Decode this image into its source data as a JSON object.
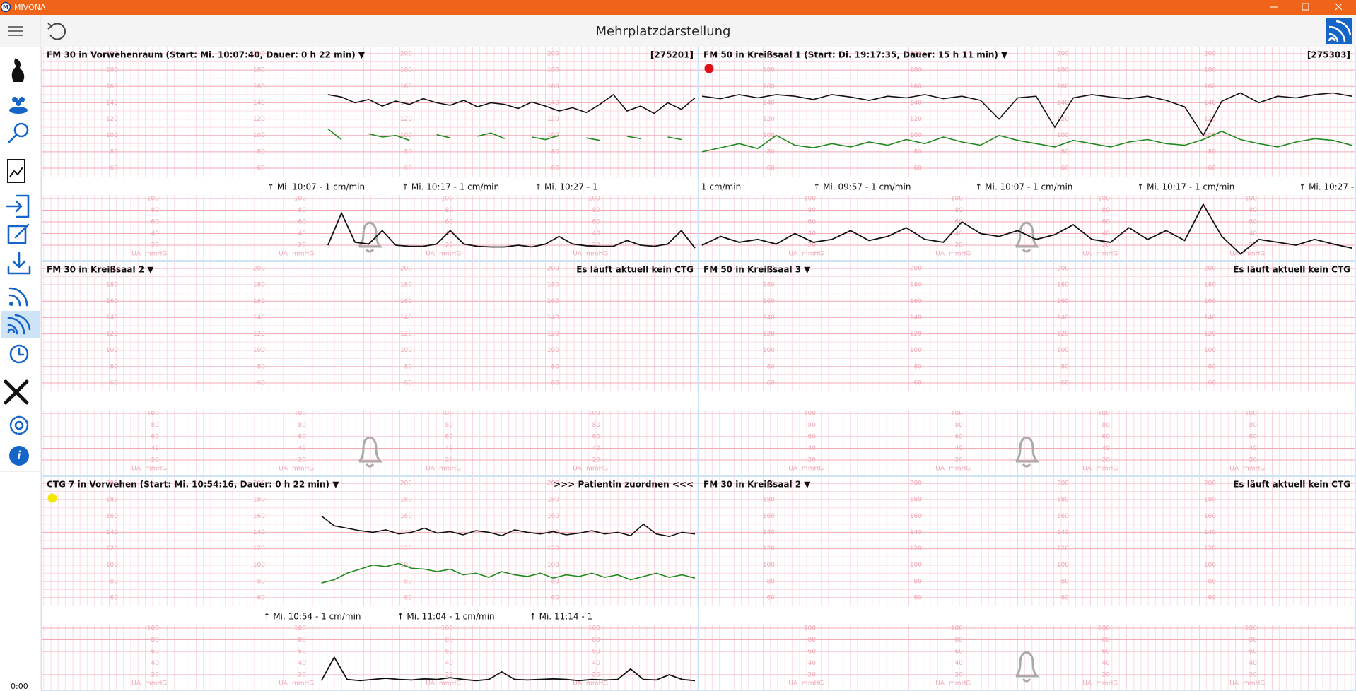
{
  "window": {
    "title": "MIVONA"
  },
  "toolbar": {
    "title": "Mehrplatzdarstellung"
  },
  "sidebar": {
    "clock": "0:00"
  },
  "scales": {
    "fhr": [
      200,
      180,
      160,
      140,
      120,
      100,
      80,
      60
    ],
    "ua": [
      100,
      80,
      60,
      40,
      20
    ],
    "ua_label": "UA",
    "ua_unit": "mmHG"
  },
  "panels": [
    {
      "title": "FM 30 in Vorwehenraum (Start: Mi. 10:07:40, Dauer: 0 h 22 min) ▼",
      "status": "[275201]",
      "times": [
        "↑ Mi. 10:07 - 1 cm/min",
        "↑ Mi. 10:17 - 1 cm/min",
        "↑ Mi. 10:27 - 1"
      ],
      "fhr": [
        150,
        147,
        140,
        144,
        136,
        142,
        138,
        145,
        140,
        137,
        143,
        135,
        140,
        138,
        133,
        141,
        136,
        130,
        134,
        128,
        138,
        150,
        130,
        136,
        127,
        140,
        132,
        146
      ],
      "mhr": [
        108,
        95,
        null,
        102,
        98,
        100,
        94,
        null,
        101,
        97,
        null,
        99,
        103,
        96,
        null,
        98,
        95,
        100,
        null,
        97,
        94,
        null,
        99,
        96,
        null,
        98,
        95,
        null
      ],
      "toco": [
        20,
        75,
        25,
        22,
        45,
        20,
        18,
        18,
        22,
        45,
        22,
        18,
        17,
        17,
        20,
        17,
        22,
        35,
        22,
        19,
        18,
        18,
        28,
        20,
        18,
        22,
        45,
        15
      ]
    },
    {
      "title": "FM 50 in Kreißsaal 1 (Start: Di. 19:17:35, Dauer: 15 h 11 min) ▼",
      "status": "[275303]",
      "indicator": "#e0101a",
      "times": [
        "1 cm/min",
        "↑ Mi. 09:57 - 1 cm/min",
        "↑ Mi. 10:07 - 1 cm/min",
        "↑ Mi. 10:17 - 1 cm/min",
        "↑ Mi. 10:27 - 1"
      ],
      "fhr": [
        148,
        145,
        150,
        146,
        150,
        148,
        144,
        150,
        147,
        143,
        148,
        146,
        150,
        145,
        148,
        143,
        120,
        146,
        148,
        110,
        146,
        150,
        147,
        145,
        148,
        143,
        135,
        100,
        142,
        152,
        140,
        148,
        146,
        150,
        152,
        148
      ],
      "mhr": [
        80,
        85,
        90,
        84,
        100,
        88,
        85,
        90,
        86,
        92,
        88,
        95,
        90,
        98,
        92,
        88,
        100,
        94,
        90,
        86,
        94,
        90,
        86,
        92,
        95,
        90,
        88,
        95,
        105,
        95,
        90,
        86,
        92,
        96,
        94,
        88
      ],
      "toco": [
        20,
        35,
        25,
        30,
        22,
        40,
        25,
        30,
        45,
        28,
        35,
        50,
        30,
        25,
        60,
        40,
        35,
        45,
        30,
        38,
        55,
        30,
        25,
        50,
        30,
        45,
        28,
        90,
        35,
        5,
        30,
        25,
        20,
        30,
        22,
        15
      ]
    },
    {
      "title": "FM 30 in Kreißsaal 2 ▼",
      "status": "Es läuft aktuell kein CTG"
    },
    {
      "title": "FM 50 in Kreißsaal 3 ▼",
      "status": "Es läuft aktuell kein CTG"
    },
    {
      "title": "CTG 7 in Vorwehen (Start: Mi. 10:54:16, Dauer: 0 h 22 min) ▼",
      "status": ">>> Patientin zuordnen <<<",
      "indicator": "#f2e600",
      "times": [
        "↑ Mi. 10:54 - 1 cm/min",
        "↑ Mi. 11:04 - 1 cm/min",
        "↑ Mi. 11:14 - 1"
      ],
      "fhr": [
        160,
        148,
        145,
        142,
        140,
        143,
        138,
        140,
        145,
        139,
        141,
        137,
        142,
        140,
        136,
        143,
        140,
        138,
        141,
        137,
        139,
        142,
        138,
        140,
        136,
        150,
        138,
        135,
        140,
        138
      ],
      "mhr": [
        78,
        82,
        90,
        95,
        100,
        98,
        102,
        96,
        95,
        92,
        95,
        88,
        90,
        85,
        92,
        88,
        86,
        90,
        84,
        88,
        86,
        90,
        85,
        88,
        82,
        86,
        90,
        85,
        88,
        84
      ],
      "toco": [
        10,
        50,
        12,
        10,
        12,
        14,
        12,
        11,
        13,
        12,
        15,
        12,
        10,
        12,
        25,
        12,
        11,
        12,
        13,
        12,
        10,
        12,
        11,
        12,
        30,
        12,
        11,
        20,
        12,
        10
      ]
    },
    {
      "title": "FM 30 in Kreißsaal 2 ▼",
      "status": "Es läuft aktuell kein CTG"
    }
  ]
}
